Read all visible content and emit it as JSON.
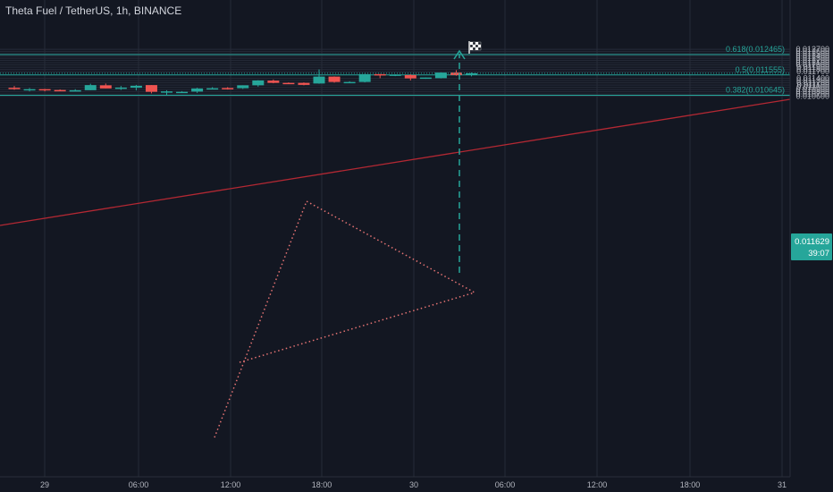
{
  "header": {
    "title": "Theta Fuel / TetherUS, 1h, BINANCE"
  },
  "price_badge": {
    "value": "0.011629",
    "countdown": "39:07"
  },
  "fib_levels": [
    {
      "label": "0.618(0.012465)",
      "price": 0.012465
    },
    {
      "label": "0.5(0.011555)",
      "price": 0.011555
    },
    {
      "label": "0.382(0.010645)",
      "price": 0.010645
    }
  ],
  "chart_data": {
    "type": "candlestick",
    "title": "Theta Fuel / TetherUS, 1h, BINANCE",
    "ylim": [
      0.0106,
      0.0127
    ],
    "y_ticks": [
      "0.012700",
      "0.012600",
      "0.012500",
      "0.012400",
      "0.012300",
      "0.012200",
      "0.012100",
      "0.012000",
      "0.011900",
      "0.011800",
      "0.011700",
      "0.011400",
      "0.011300",
      "0.011200",
      "0.011100",
      "0.011000",
      "0.010900",
      "0.010800",
      "0.010700",
      "0.010600"
    ],
    "x_ticks": [
      "29",
      "06:00",
      "12:00",
      "18:00",
      "30",
      "06:00",
      "12:00",
      "18:00",
      "31"
    ],
    "candles": [
      {
        "o": 0.01098,
        "h": 0.01106,
        "l": 0.01089,
        "c": 0.01093
      },
      {
        "o": 0.01092,
        "h": 0.01097,
        "l": 0.01082,
        "c": 0.01092
      },
      {
        "o": 0.01092,
        "h": 0.01093,
        "l": 0.01082,
        "c": 0.01088
      },
      {
        "o": 0.01088,
        "h": 0.01091,
        "l": 0.01083,
        "c": 0.01087
      },
      {
        "o": 0.01087,
        "h": 0.01092,
        "l": 0.01084,
        "c": 0.01087
      },
      {
        "o": 0.01087,
        "h": 0.01116,
        "l": 0.01087,
        "c": 0.0111
      },
      {
        "o": 0.01109,
        "h": 0.01117,
        "l": 0.01095,
        "c": 0.01095
      },
      {
        "o": 0.01095,
        "h": 0.01106,
        "l": 0.01088,
        "c": 0.01099
      },
      {
        "o": 0.01098,
        "h": 0.01111,
        "l": 0.01086,
        "c": 0.01107
      },
      {
        "o": 0.0111,
        "h": 0.0111,
        "l": 0.01073,
        "c": 0.0108
      },
      {
        "o": 0.0108,
        "h": 0.01087,
        "l": 0.01064,
        "c": 0.01082
      },
      {
        "o": 0.0108,
        "h": 0.01083,
        "l": 0.01079,
        "c": 0.0108
      },
      {
        "o": 0.01081,
        "h": 0.01098,
        "l": 0.01075,
        "c": 0.01095
      },
      {
        "o": 0.01095,
        "h": 0.01101,
        "l": 0.01092,
        "c": 0.01096
      },
      {
        "o": 0.01097,
        "h": 0.01101,
        "l": 0.0109,
        "c": 0.01092
      },
      {
        "o": 0.01096,
        "h": 0.01109,
        "l": 0.01093,
        "c": 0.01109
      },
      {
        "o": 0.01109,
        "h": 0.01132,
        "l": 0.01103,
        "c": 0.01131
      },
      {
        "o": 0.0113,
        "h": 0.01135,
        "l": 0.01118,
        "c": 0.0112
      },
      {
        "o": 0.0112,
        "h": 0.01122,
        "l": 0.01117,
        "c": 0.01119
      },
      {
        "o": 0.0112,
        "h": 0.01122,
        "l": 0.01109,
        "c": 0.01111
      },
      {
        "o": 0.01117,
        "h": 0.0118,
        "l": 0.01116,
        "c": 0.01148
      },
      {
        "o": 0.01148,
        "h": 0.01149,
        "l": 0.01121,
        "c": 0.01124
      },
      {
        "o": 0.01124,
        "h": 0.01127,
        "l": 0.01122,
        "c": 0.01124
      },
      {
        "o": 0.01124,
        "h": 0.0116,
        "l": 0.01122,
        "c": 0.01159
      },
      {
        "o": 0.01159,
        "h": 0.0116,
        "l": 0.01141,
        "c": 0.01156
      },
      {
        "o": 0.01155,
        "h": 0.01158,
        "l": 0.0115,
        "c": 0.01157
      },
      {
        "o": 0.01155,
        "h": 0.01158,
        "l": 0.01131,
        "c": 0.0114
      },
      {
        "o": 0.0114,
        "h": 0.01144,
        "l": 0.01138,
        "c": 0.01144
      },
      {
        "o": 0.01141,
        "h": 0.01167,
        "l": 0.0114,
        "c": 0.01166
      },
      {
        "o": 0.01166,
        "h": 0.01177,
        "l": 0.01152,
        "c": 0.01155
      },
      {
        "o": 0.01155,
        "h": 0.01166,
        "l": 0.01149,
        "c": 0.01163
      }
    ],
    "colors": {
      "up": "#26a69a",
      "down": "#ef5350",
      "fib": "#26a69a",
      "trend": "#b22833",
      "triangle": "#e57373",
      "projection": "#26a69a",
      "grid": "#262b38",
      "axis_text": "#b2b5be"
    }
  }
}
